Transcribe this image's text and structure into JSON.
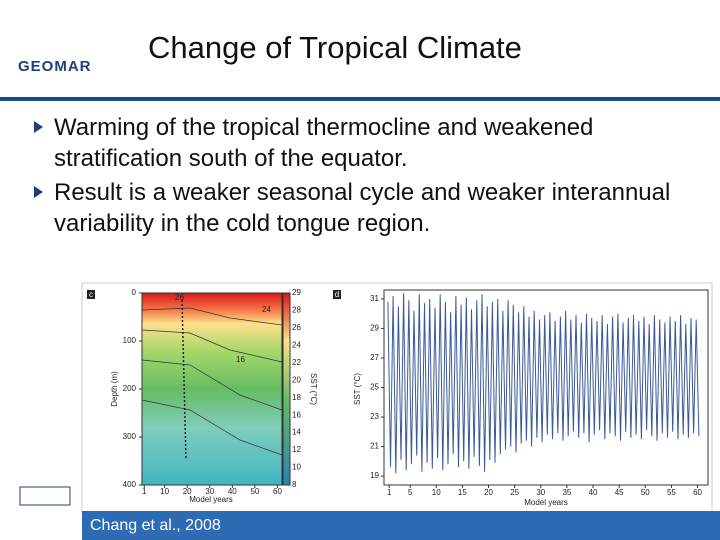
{
  "header": {
    "logo": "GEOMAR",
    "title": "Change of Tropical Climate"
  },
  "bullets": [
    "Warming of the tropical thermocline and weakened stratification south of the equator.",
    "Result is a weaker seasonal cycle and weaker interannual variability in the cold tongue region."
  ],
  "figure": {
    "left": {
      "panel": "c",
      "ylabel": "Depth (m)",
      "xlabel": "Model years",
      "colorbar_label": "SST (°C)",
      "yticks": [
        0,
        100,
        200,
        300,
        400
      ],
      "ylim": [
        0,
        400
      ],
      "xticks": [
        1,
        10,
        20,
        30,
        40,
        50,
        60
      ],
      "xlim": [
        0,
        62
      ],
      "colorbar_ticks": [
        29,
        28,
        26,
        24,
        22,
        20,
        18,
        16,
        14,
        12,
        10,
        8
      ],
      "contour_labels": [
        "26",
        "24",
        "16"
      ]
    },
    "right": {
      "panel": "d",
      "ylabel": "SST (°C)",
      "xlabel": "Model years",
      "yticks": [
        31,
        29,
        27,
        25,
        23,
        21,
        19
      ],
      "ylim": [
        18.4,
        31.6
      ],
      "xticks": [
        1,
        5,
        10,
        15,
        20,
        25,
        30,
        35,
        40,
        45,
        50,
        55,
        60
      ],
      "xlim": [
        0,
        62
      ],
      "years": [
        1,
        2,
        3,
        4,
        5,
        6,
        7,
        8,
        9,
        10,
        11,
        12,
        13,
        14,
        15,
        16,
        17,
        18,
        19,
        20,
        21,
        22,
        23,
        24,
        25,
        26,
        27,
        28,
        29,
        30,
        31,
        32,
        33,
        34,
        35,
        36,
        37,
        38,
        39,
        40,
        41,
        42,
        43,
        44,
        45,
        46,
        47,
        48,
        49,
        50,
        51,
        52,
        53,
        54,
        55,
        56,
        57,
        58,
        59,
        60
      ],
      "annual_max": [
        30.8,
        31.2,
        30.5,
        31.4,
        30.9,
        30.2,
        31.3,
        30.7,
        31.0,
        30.4,
        31.3,
        30.8,
        30.1,
        31.2,
        30.6,
        31.1,
        30.3,
        30.9,
        31.3,
        30.5,
        30.8,
        31.0,
        30.2,
        30.9,
        30.6,
        30.1,
        30.5,
        29.8,
        30.2,
        29.6,
        29.9,
        30.1,
        29.5,
        29.8,
        30.2,
        29.6,
        29.9,
        29.4,
        30.0,
        29.7,
        29.5,
        29.9,
        29.3,
        29.8,
        30.0,
        29.4,
        29.7,
        29.9,
        29.5,
        29.8,
        29.3,
        29.9,
        29.6,
        29.4,
        29.8,
        29.5,
        29.9,
        29.3,
        29.7,
        29.6
      ],
      "annual_min": [
        19.6,
        19.2,
        20.1,
        19.4,
        19.8,
        20.4,
        19.3,
        19.9,
        19.5,
        20.2,
        19.4,
        19.8,
        20.5,
        19.6,
        20.0,
        19.5,
        20.3,
        19.7,
        19.3,
        20.1,
        19.9,
        20.5,
        20.8,
        21.0,
        20.6,
        21.2,
        21.4,
        21.0,
        21.6,
        21.3,
        21.8,
        21.5,
        21.9,
        21.4,
        21.7,
        22.0,
        21.6,
        21.9,
        21.3,
        21.8,
        22.1,
        21.5,
        21.9,
        21.7,
        21.4,
        22.0,
        21.6,
        21.8,
        21.5,
        22.1,
        21.7,
        21.4,
        21.9,
        21.6,
        22.0,
        21.5,
        21.8,
        21.6,
        21.9,
        21.7
      ]
    },
    "citation": "Chang et al., 2008"
  }
}
